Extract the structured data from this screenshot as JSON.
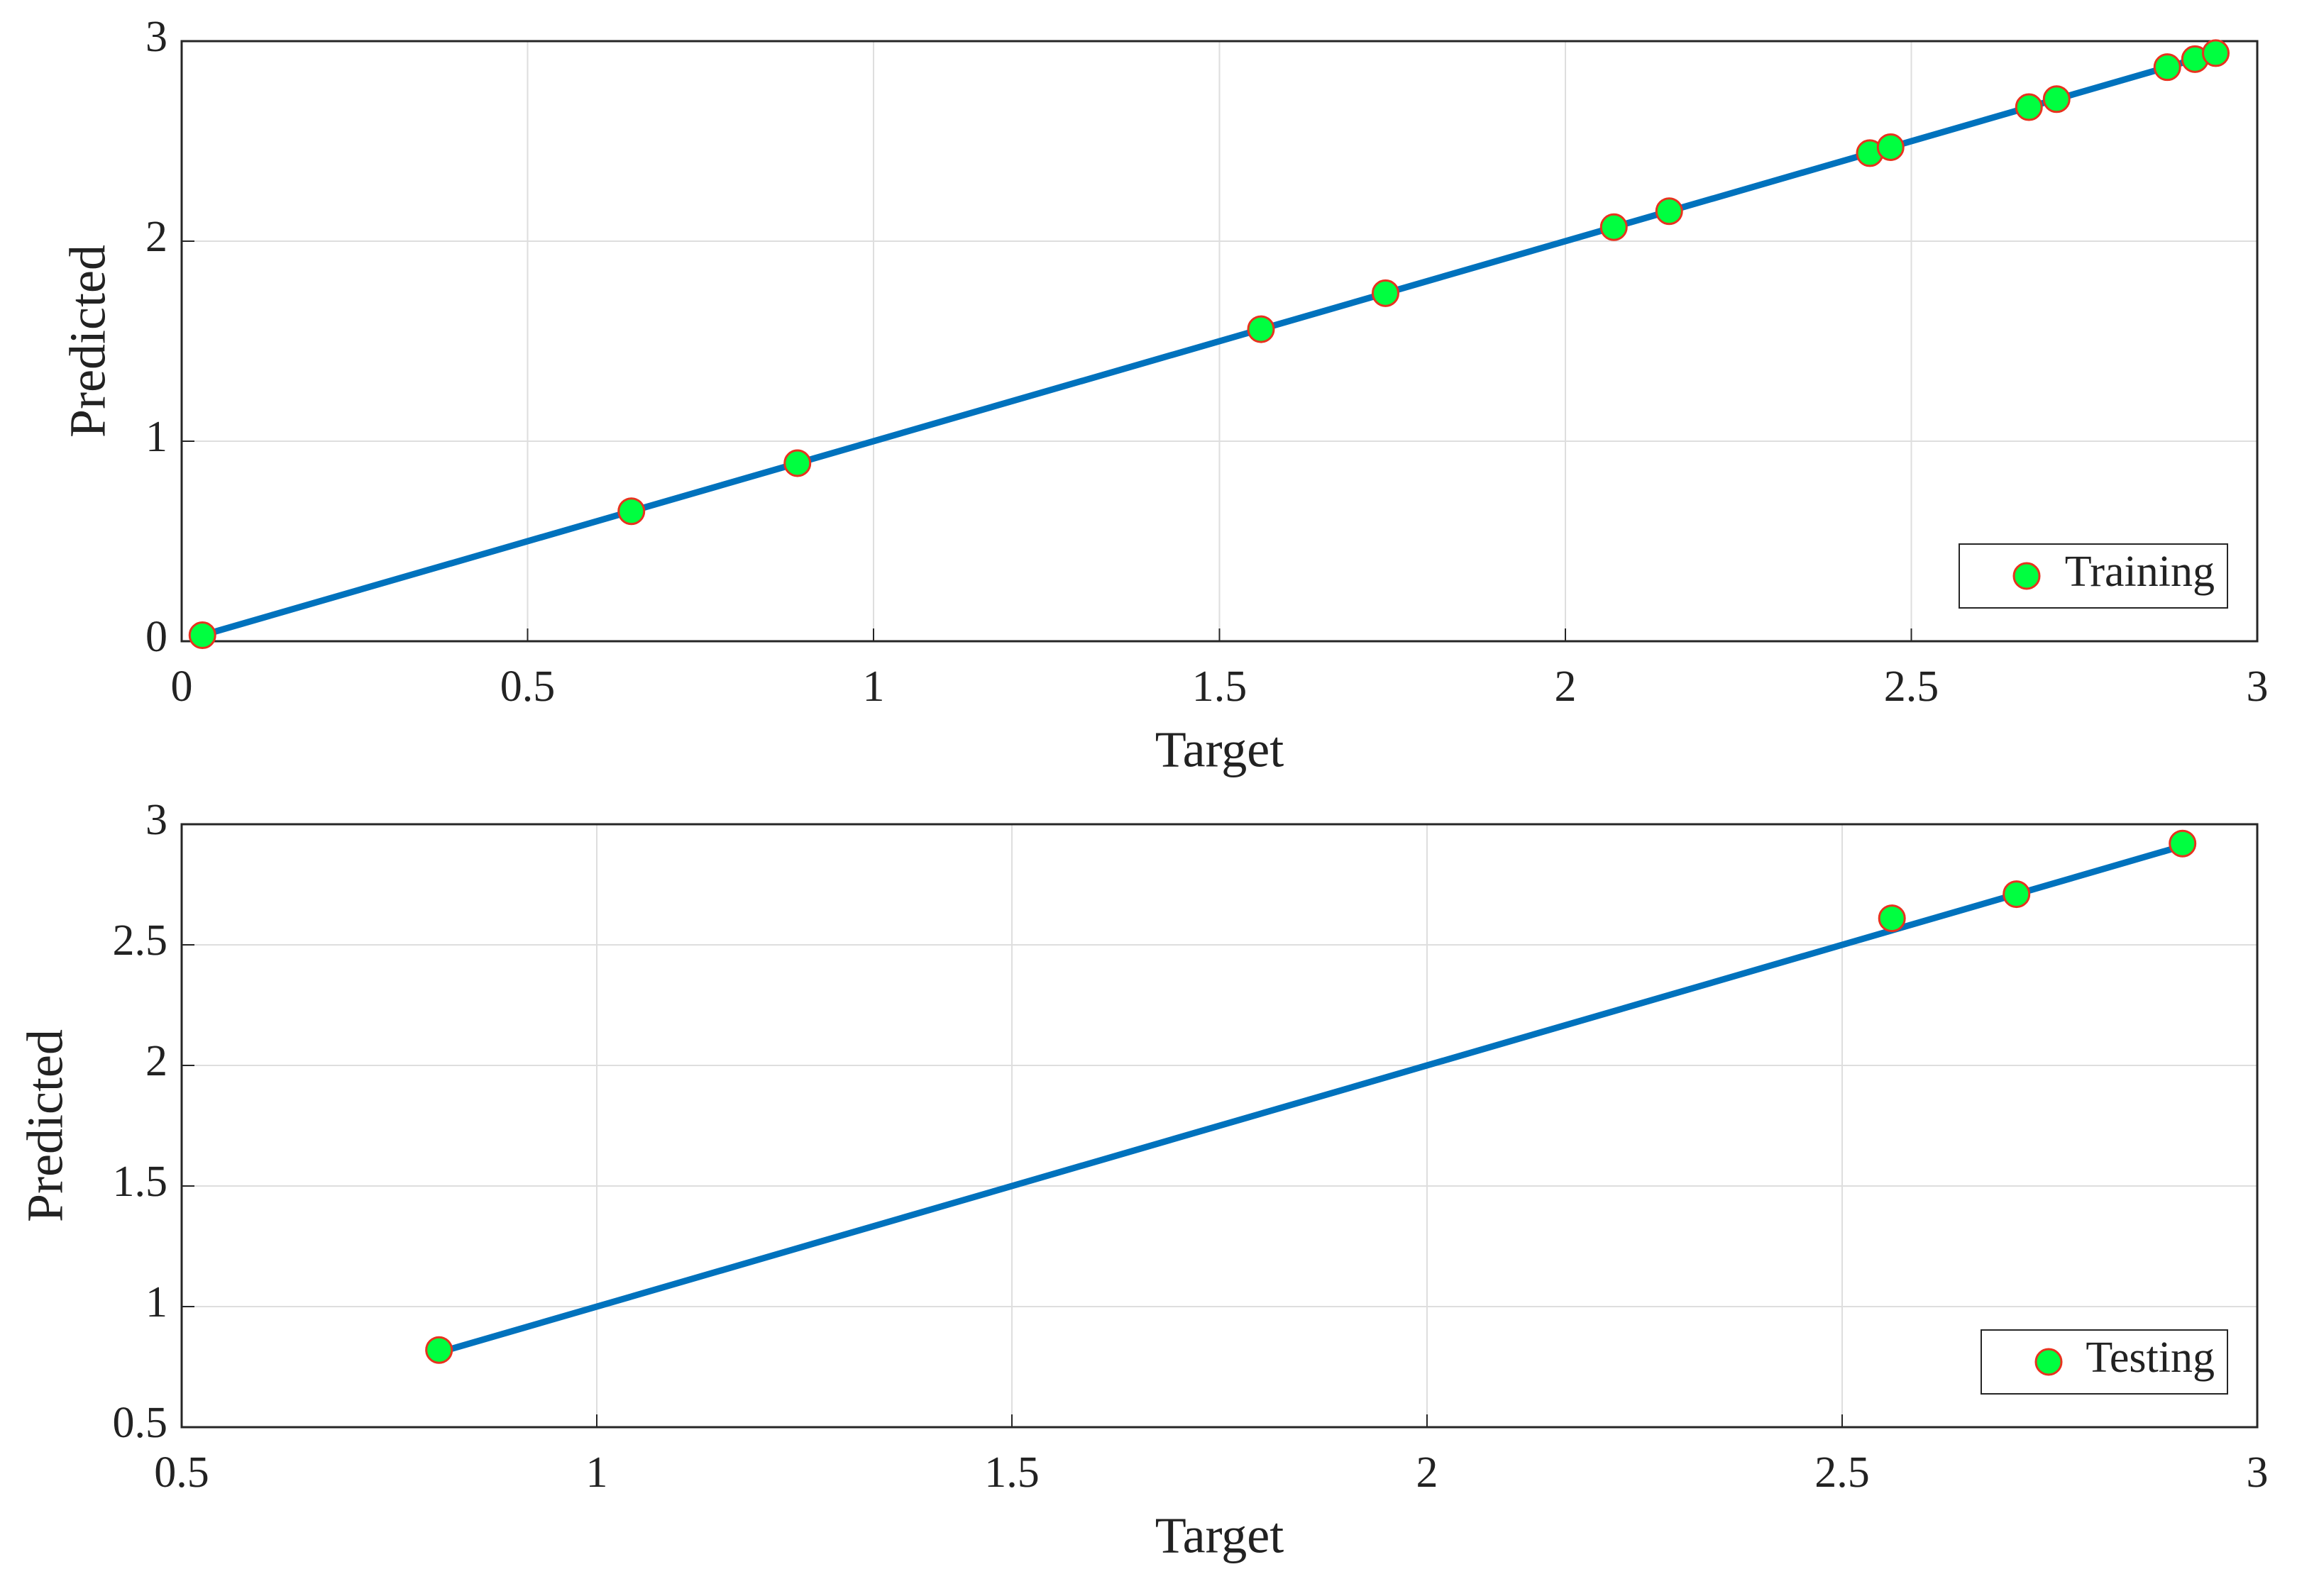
{
  "chart_data": [
    {
      "type": "scatter",
      "xlabel": "Target",
      "ylabel": "Predicted",
      "series": [
        {
          "name": "Training",
          "color": "#00ff40",
          "edgecolor": "#e8321e",
          "x": [
            0.03,
            0.65,
            0.89,
            1.56,
            1.74,
            2.07,
            2.15,
            2.44,
            2.47,
            2.67,
            2.71,
            2.87,
            2.91,
            2.94
          ],
          "y": [
            0.03,
            0.65,
            0.89,
            1.56,
            1.74,
            2.07,
            2.15,
            2.44,
            2.47,
            2.67,
            2.71,
            2.87,
            2.91,
            2.94
          ]
        }
      ],
      "fit_line": {
        "color": "#0072bd",
        "x": [
          0.03,
          2.94
        ],
        "y": [
          0.03,
          2.94
        ]
      },
      "xlim": [
        0,
        3
      ],
      "ylim": [
        0,
        3
      ],
      "xticks": [
        0,
        0.5,
        1,
        1.5,
        2,
        2.5,
        3
      ],
      "yticks": [
        0,
        1,
        2,
        3
      ],
      "grid": true,
      "legend": "lower right"
    },
    {
      "type": "scatter",
      "xlabel": "Target",
      "ylabel": "Predicted",
      "series": [
        {
          "name": "Testing",
          "color": "#00ff40",
          "edgecolor": "#e8321e",
          "x": [
            0.81,
            2.56,
            2.71,
            2.91
          ],
          "y": [
            0.82,
            2.61,
            2.71,
            2.92
          ]
        }
      ],
      "fit_line": {
        "color": "#0072bd",
        "x": [
          0.81,
          2.91
        ],
        "y": [
          0.81,
          2.91
        ]
      },
      "xlim": [
        0.5,
        3
      ],
      "ylim": [
        0.5,
        3
      ],
      "xticks": [
        0.5,
        1,
        1.5,
        2,
        2.5,
        3
      ],
      "yticks": [
        0.5,
        1,
        1.5,
        2,
        2.5,
        3
      ],
      "grid": true,
      "legend": "lower right"
    }
  ]
}
